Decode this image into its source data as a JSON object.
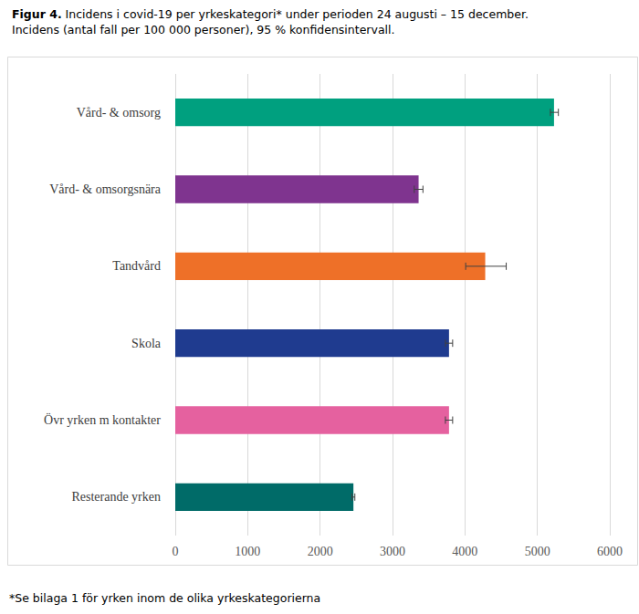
{
  "chart_data": {
    "type": "bar",
    "orientation": "horizontal",
    "title": "Figur 4. Incidens i covid-19 per yrkeskategori* under perioden 24 augusti – 15 december.",
    "subtitle": "Incidens (antal fall per 100 000 personer), 95 % konfidensintervall.",
    "annotations": [
      "*Se bilaga 1 för yrken inom de olika yrkeskategorierna"
    ],
    "categories": [
      "Vård- & omsorg",
      "Vård- & omsorgsnära",
      "Tandvård",
      "Skola",
      "Övr yrken m kontakter",
      "Resterande yrken"
    ],
    "values": [
      5230,
      3360,
      4280,
      3780,
      3780,
      2460
    ],
    "error_low": [
      5180,
      3300,
      4010,
      3730,
      3730,
      2440
    ],
    "error_high": [
      5290,
      3420,
      4570,
      3830,
      3830,
      2480
    ],
    "colors": [
      "#00a07f",
      "#7f348f",
      "#ee7028",
      "#1f3b8f",
      "#e5619f",
      "#006b68"
    ],
    "xlim": [
      0,
      6000
    ],
    "xticks": [
      0,
      1000,
      2000,
      3000,
      4000,
      5000,
      6000
    ],
    "grid": true
  }
}
